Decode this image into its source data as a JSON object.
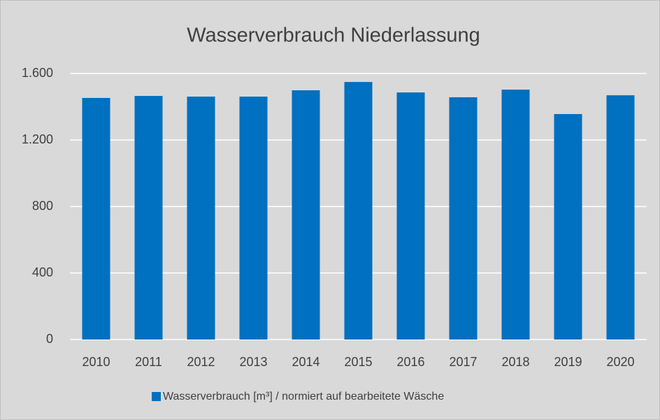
{
  "chart_data": {
    "type": "bar",
    "title": "Wasserverbrauch Niederlassung",
    "categories": [
      "2010",
      "2011",
      "2012",
      "2013",
      "2014",
      "2015",
      "2016",
      "2017",
      "2018",
      "2019",
      "2020"
    ],
    "series": [
      {
        "name": "Wasserverbrauch [m³] / normiert auf bearbeitete Wäsche",
        "color": "#0070c0",
        "values": [
          1453,
          1465,
          1461,
          1461,
          1499,
          1549,
          1486,
          1457,
          1503,
          1356,
          1469
        ]
      }
    ],
    "ylim": [
      0,
      1600
    ],
    "yticks": [
      0,
      400,
      800,
      {
        "value": 1200,
        "label": "1.200"
      },
      {
        "value": 1600,
        "label": "1.600"
      }
    ],
    "grid": true,
    "legend": "bottom"
  }
}
